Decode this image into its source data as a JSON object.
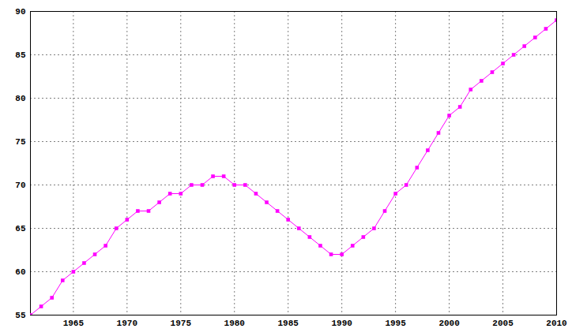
{
  "chart_data": {
    "type": "line",
    "x": [
      1961,
      1962,
      1963,
      1964,
      1965,
      1966,
      1967,
      1968,
      1969,
      1970,
      1971,
      1972,
      1973,
      1974,
      1975,
      1976,
      1977,
      1978,
      1979,
      1980,
      1981,
      1982,
      1983,
      1984,
      1985,
      1986,
      1987,
      1988,
      1989,
      1990,
      1991,
      1992,
      1993,
      1994,
      1995,
      1996,
      1997,
      1998,
      1999,
      2000,
      2001,
      2002,
      2003,
      2004,
      2005,
      2006,
      2007,
      2008,
      2009,
      2010
    ],
    "values": [
      55,
      56,
      57,
      59,
      60,
      61,
      62,
      63,
      65,
      66,
      67,
      67,
      68,
      69,
      69,
      70,
      70,
      71,
      71,
      70,
      70,
      69,
      68,
      67,
      66,
      65,
      64,
      63,
      62,
      62,
      63,
      64,
      65,
      67,
      69,
      70,
      72,
      74,
      76,
      78,
      79,
      81,
      82,
      83,
      84,
      85,
      86,
      87,
      88,
      89
    ],
    "color": "#ff00ff",
    "marker": "square",
    "xlim": [
      1961,
      2010
    ],
    "xticks": [
      1965,
      1970,
      1975,
      1980,
      1985,
      1990,
      1995,
      2000,
      2005,
      2010
    ],
    "ylim": [
      55,
      90
    ],
    "yticks": [
      55,
      60,
      65,
      70,
      75,
      80,
      85,
      90
    ],
    "grid": true
  }
}
